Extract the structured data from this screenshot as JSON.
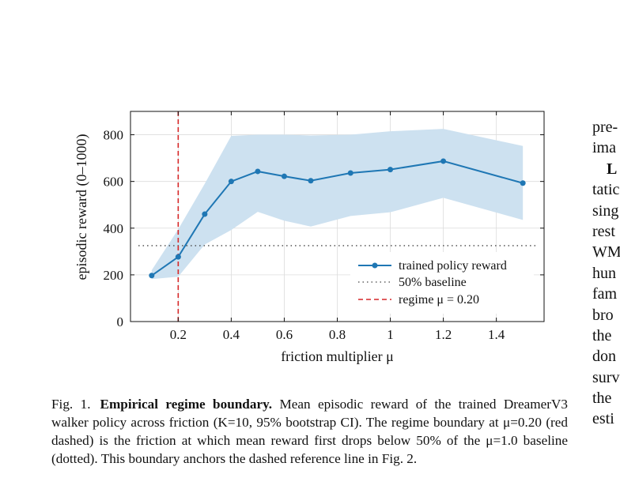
{
  "chart_data": {
    "type": "line",
    "xlabel": "friction multiplier μ",
    "ylabel": "episodic reward (0–1000)",
    "xlim": [
      0.02,
      1.58
    ],
    "ylim": [
      0,
      900
    ],
    "x_ticks": [
      0.2,
      0.4,
      0.6,
      0.8,
      1,
      1.2,
      1.4
    ],
    "x_tick_labels": [
      "0.2",
      "0.4",
      "0.6",
      "0.8",
      "1",
      "1.2",
      "1.4"
    ],
    "y_ticks": [
      0,
      200,
      400,
      600,
      800
    ],
    "y_tick_labels": [
      "0",
      "200",
      "400",
      "600",
      "800"
    ],
    "grid": true,
    "legend_position": "bottom-right",
    "series": [
      {
        "name": "trained policy reward",
        "color": "#1f77b4",
        "style": "solid-with-markers",
        "x": [
          0.1,
          0.2,
          0.3,
          0.4,
          0.5,
          0.6,
          0.7,
          0.85,
          1.0,
          1.2,
          1.5
        ],
        "y": [
          197,
          277,
          460,
          600,
          643,
          622,
          603,
          636,
          651,
          687,
          593
        ],
        "ci_lower": [
          182,
          192,
          330,
          392,
          470,
          432,
          407,
          452,
          468,
          530,
          435
        ],
        "ci_upper": [
          220,
          395,
          590,
          795,
          800,
          800,
          797,
          800,
          815,
          825,
          752
        ]
      },
      {
        "name": "50% baseline",
        "color": "#444444",
        "style": "dotted",
        "y_constant": 325
      },
      {
        "name": "regime μ = 0.20",
        "color": "#d62728",
        "style": "dashed",
        "x_constant": 0.2
      }
    ],
    "band_color": "#cde1f0"
  },
  "caption": {
    "label": "Fig. 1.",
    "title": "Empirical regime boundary.",
    "body": "Mean episodic reward of the trained DreamerV3 walker policy across friction (K=10, 95% bootstrap CI). The regime boundary at μ=0.20 (red dashed) is the friction at which mean reward first drops below 50% of the μ=1.0 baseline (dotted). This boundary anchors the dashed reference line in Fig. 2."
  },
  "side_column": {
    "lines": [
      "pre-",
      "ima",
      "L",
      "tatic",
      "sing",
      "rest",
      "WM",
      "hun",
      "fam",
      "bro",
      "the",
      "don",
      "surv",
      "the",
      "esti"
    ]
  }
}
